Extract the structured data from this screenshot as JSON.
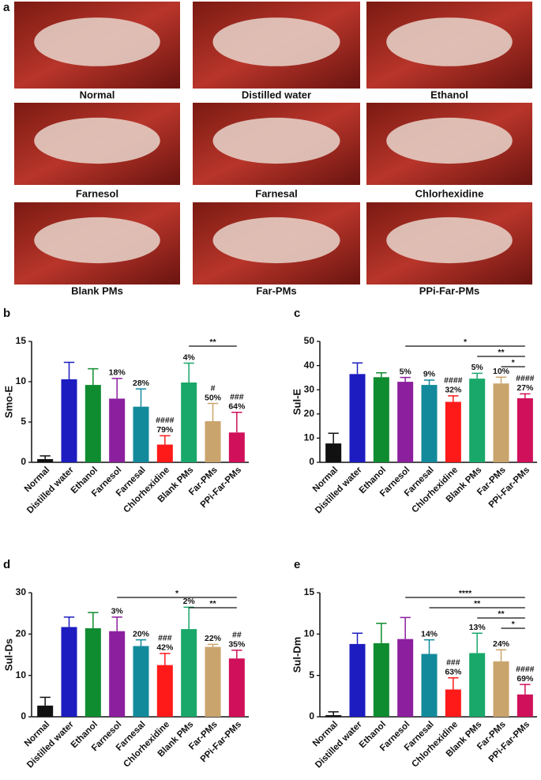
{
  "photo_panel": {
    "label": "a",
    "captions": [
      "Normal",
      "Distilled water",
      "Ethanol",
      "Farnesol",
      "Farnesal",
      "Chlorhexidine",
      "Blank PMs",
      "Far-PMs",
      "PPi-Far-PMs"
    ]
  },
  "chart_data": [
    {
      "type": "bar",
      "panel": "b",
      "ylabel": "Smo-E",
      "categories": [
        "Normal",
        "Distilled water",
        "Ethanol",
        "Farnesol",
        "Farnesal",
        "Chlorhexidine",
        "Blank PMs",
        "Far-PMs",
        "PPi-Far-PMs"
      ],
      "values": [
        0.4,
        10.3,
        9.6,
        7.9,
        6.9,
        2.2,
        9.9,
        5.1,
        3.7
      ],
      "errors": [
        0.4,
        2.1,
        2.0,
        2.5,
        2.2,
        1.1,
        2.4,
        2.2,
        2.5
      ],
      "labels": [
        null,
        null,
        null,
        "18%",
        "28%",
        "79%",
        "4%",
        "50%",
        "64%"
      ],
      "hash": [
        null,
        null,
        null,
        null,
        null,
        "####",
        null,
        "#",
        "###"
      ],
      "colors": [
        "#111111",
        "#1c1cc0",
        "#0f8c30",
        "#8b1f9e",
        "#138a9c",
        "#ff1a1a",
        "#19a86a",
        "#c9a46c",
        "#d0105a"
      ],
      "ylim": [
        0,
        15
      ],
      "yticks": [
        0,
        5,
        10,
        15
      ],
      "brackets": [
        {
          "label": "**",
          "from": "Blank PMs",
          "to": "PPi-Far-PMs"
        }
      ]
    },
    {
      "type": "bar",
      "panel": "c",
      "ylabel": "Sul-E",
      "categories": [
        "Normal",
        "Distilled water",
        "Ethanol",
        "Farnesol",
        "Farnesal",
        "Chlorhexidine",
        "Blank PMs",
        "Far-PMs",
        "PPi-Far-PMs"
      ],
      "values": [
        7.8,
        36.5,
        35.2,
        33.3,
        32,
        25,
        34.6,
        32.6,
        26.5
      ],
      "errors": [
        4.2,
        4.6,
        1.8,
        1.8,
        2,
        2.5,
        2.2,
        2.6,
        1.8
      ],
      "labels": [
        null,
        null,
        null,
        "5%",
        "9%",
        "32%",
        "5%",
        "10%",
        "27%"
      ],
      "hash": [
        null,
        null,
        null,
        null,
        null,
        "####",
        null,
        null,
        "####"
      ],
      "colors": [
        "#111111",
        "#1c1cc0",
        "#0f8c30",
        "#8b1f9e",
        "#138a9c",
        "#ff1a1a",
        "#19a86a",
        "#c9a46c",
        "#d0105a"
      ],
      "ylim": [
        0,
        50
      ],
      "yticks": [
        0,
        10,
        20,
        30,
        40,
        50
      ],
      "brackets": [
        {
          "label": "*",
          "from": "Farnesol",
          "to": "PPi-Far-PMs"
        },
        {
          "label": "**",
          "from": "Blank PMs",
          "to": "PPi-Far-PMs"
        },
        {
          "label": "*",
          "from": "Far-PMs",
          "to": "PPi-Far-PMs"
        }
      ]
    },
    {
      "type": "bar",
      "panel": "d",
      "ylabel": "Sul-Ds",
      "categories": [
        "Normal",
        "Distilled water",
        "Ethanol",
        "Farnesol",
        "Farnesal",
        "Chlorhexidine",
        "Blank PMs",
        "Far-PMs",
        "PPi-Far-PMs"
      ],
      "values": [
        2.7,
        21.7,
        21.4,
        20.7,
        17.1,
        12.5,
        21.2,
        16.9,
        14.1
      ],
      "errors": [
        2,
        2.4,
        3.8,
        3.4,
        1.5,
        2.8,
        5.3,
        0.6,
        2
      ],
      "labels": [
        null,
        null,
        null,
        "3%",
        "20%",
        "42%",
        "2%",
        "22%",
        "35%"
      ],
      "hash": [
        null,
        null,
        null,
        null,
        null,
        "###",
        null,
        null,
        "##"
      ],
      "colors": [
        "#111111",
        "#1c1cc0",
        "#0f8c30",
        "#8b1f9e",
        "#138a9c",
        "#ff1a1a",
        "#19a86a",
        "#c9a46c",
        "#d0105a"
      ],
      "ylim": [
        0,
        30
      ],
      "yticks": [
        0,
        10,
        20,
        30
      ],
      "brackets": [
        {
          "label": "*",
          "from": "Farnesol",
          "to": "PPi-Far-PMs"
        },
        {
          "label": "**",
          "from": "Blank PMs",
          "to": "PPi-Far-PMs"
        }
      ]
    },
    {
      "type": "bar",
      "panel": "e",
      "ylabel": "Sul-Dm",
      "categories": [
        "Normal",
        "Distilled water",
        "Ethanol",
        "Farnesol",
        "Farnesal",
        "Chlorhexidine",
        "Blank PMs",
        "Far-PMs",
        "PPi-Far-PMs"
      ],
      "values": [
        0.2,
        8.8,
        8.9,
        9.4,
        7.6,
        3.3,
        7.7,
        6.7,
        2.7
      ],
      "errors": [
        0.4,
        1.3,
        2.4,
        2.6,
        1.7,
        1.4,
        2.4,
        1.4,
        1.2
      ],
      "labels": [
        null,
        null,
        null,
        null,
        "14%",
        "63%",
        "13%",
        "24%",
        "69%"
      ],
      "hash": [
        null,
        null,
        null,
        null,
        null,
        "###",
        null,
        null,
        "####"
      ],
      "colors": [
        "#111111",
        "#1c1cc0",
        "#0f8c30",
        "#8b1f9e",
        "#138a9c",
        "#ff1a1a",
        "#19a86a",
        "#c9a46c",
        "#d0105a"
      ],
      "ylim": [
        0,
        15
      ],
      "yticks": [
        0,
        5,
        10,
        15
      ],
      "brackets": [
        {
          "label": "****",
          "from": "Farnesol",
          "to": "PPi-Far-PMs"
        },
        {
          "label": "**",
          "from": "Farnesal",
          "to": "PPi-Far-PMs"
        },
        {
          "label": "**",
          "from": "Blank PMs",
          "to": "PPi-Far-PMs"
        },
        {
          "label": "*",
          "from": "Far-PMs",
          "to": "PPi-Far-PMs"
        }
      ]
    }
  ]
}
